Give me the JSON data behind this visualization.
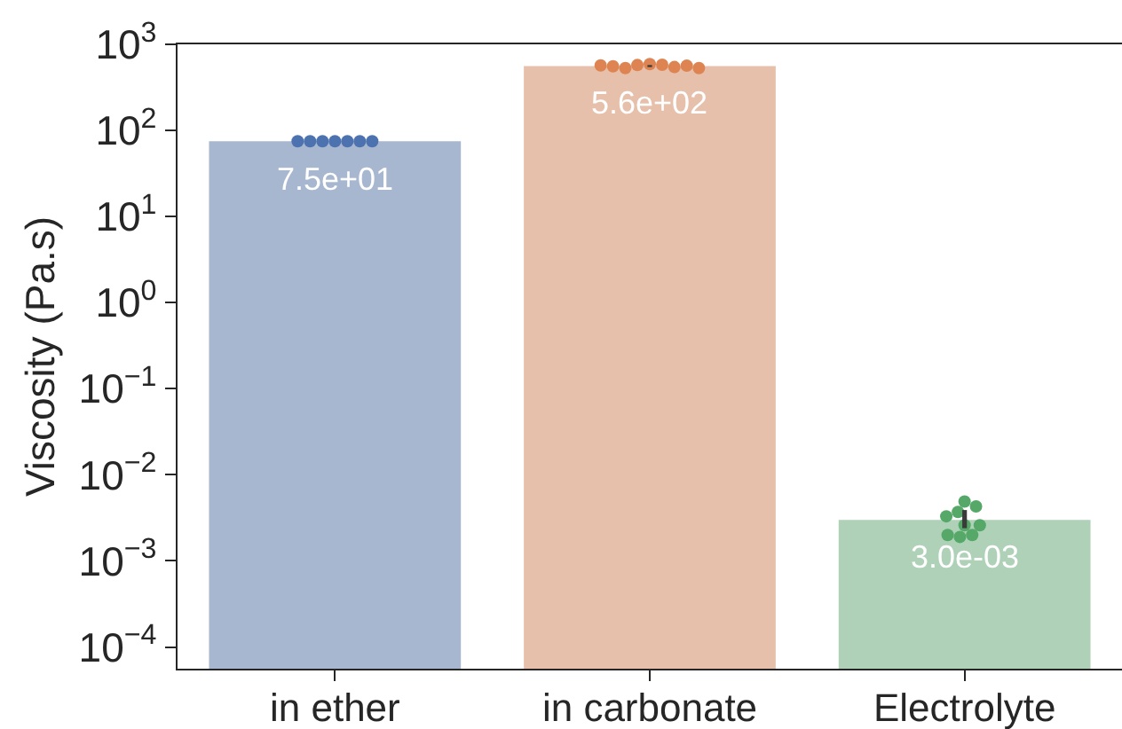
{
  "chart_data": {
    "type": "bar",
    "ylabel": "Viscosity (Pa.s)",
    "categories": [
      "in ether",
      "in carbonate",
      "Electrolyte"
    ],
    "log": "y",
    "ylim": [
      5.6e-05,
      1000
    ],
    "yticks": [
      {
        "value": 0.0001,
        "label": "10$^{−4}$"
      },
      {
        "value": 0.001,
        "label": "10$^{−3}$"
      },
      {
        "value": 0.01,
        "label": "10$^{−2}$"
      },
      {
        "value": 0.1,
        "label": "10$^{−1}$"
      },
      {
        "value": 1,
        "label": "10$^{0}$"
      },
      {
        "value": 10,
        "label": "10$^{1}$"
      },
      {
        "value": 100,
        "label": "10$^{2}$"
      },
      {
        "value": 1000,
        "label": "10$^{3}$"
      }
    ],
    "grid": false,
    "marker": "circle",
    "series": [
      {
        "colors": [
          "#a8b7d0",
          "#e6c0ab",
          "#aed1b7"
        ],
        "values": [
          75,
          560,
          0.003
        ],
        "errors": [
          null,
          [
            545,
            575
          ],
          [
            0.0024,
            0.0039
          ]
        ],
        "value_labels": [
          "7.5e+01",
          "5.6e+02",
          "3.0e-03"
        ]
      },
      {
        "type": "scatter",
        "color": "#4c72b0",
        "x": [
          "in ether",
          "in ether",
          "in ether",
          "in ether",
          "in ether",
          "in ether",
          "in ether"
        ],
        "values": [
          75,
          75,
          75,
          75,
          75,
          75,
          75
        ]
      },
      {
        "type": "scatter",
        "color": "#dd8452",
        "x": [
          "in carbonate",
          "in carbonate",
          "in carbonate",
          "in carbonate",
          "in carbonate",
          "in carbonate",
          "in carbonate",
          "in carbonate",
          "in carbonate"
        ],
        "values": [
          590,
          580,
          575,
          545,
          530,
          555,
          565,
          570,
          530
        ]
      },
      {
        "type": "scatter",
        "color": "#55a868",
        "x": [
          "Electrolyte",
          "Electrolyte",
          "Electrolyte",
          "Electrolyte",
          "Electrolyte",
          "Electrolyte",
          "Electrolyte",
          "Electrolyte",
          "Electrolyte"
        ],
        "values": [
          0.0049,
          0.0043,
          0.0037,
          0.0033,
          0.0026,
          0.002,
          0.0019,
          0.002,
          0.0026
        ]
      }
    ]
  }
}
